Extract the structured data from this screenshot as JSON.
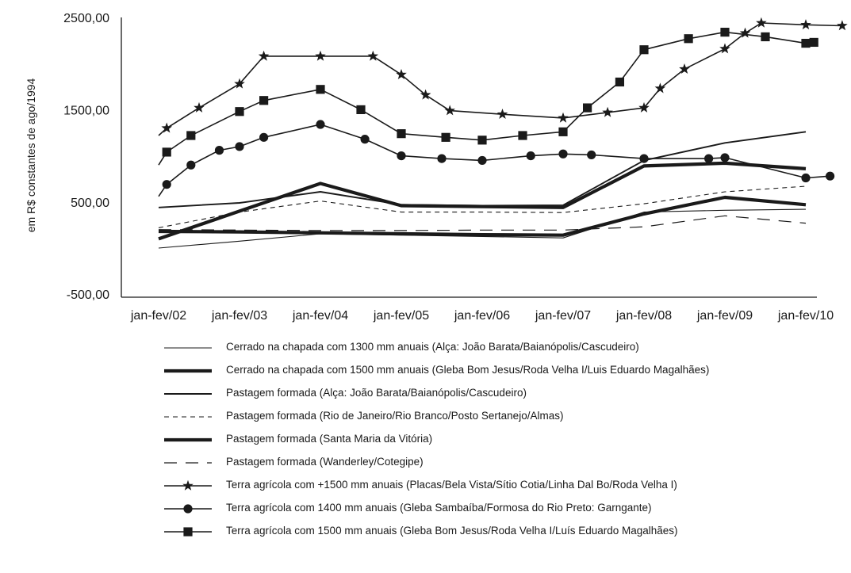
{
  "chart_data": {
    "type": "line",
    "ylabel": "em R$ constantes de ago/1994",
    "ylim": [
      -500,
      2500
    ],
    "yticks": [
      "2500,00",
      "1500,00",
      "500,00",
      "-500,00"
    ],
    "ytick_values": [
      2500,
      1500,
      500,
      -500
    ],
    "grid": false,
    "legend_placement": "bottom",
    "xtick_labels": [
      "jan-fev/02",
      "jan-fev/03",
      "jan-fev/04",
      "jan-fev/05",
      "jan-fev/06",
      "jan-fev/07",
      "jan-fev/08",
      "jan-fev/09",
      "jan-fev/10"
    ],
    "series": [
      {
        "name": "Cerrado na chapada com 1300 mm anuais (Alça: João Barata/Baianópolis/Cascudeiro)",
        "style": "thin",
        "points": [
          [
            0,
            0
          ],
          [
            1,
            75
          ],
          [
            2,
            155
          ],
          [
            3,
            140
          ],
          [
            4,
            125
          ],
          [
            5,
            110
          ],
          [
            6,
            390
          ],
          [
            7,
            410
          ],
          [
            8,
            420
          ]
        ]
      },
      {
        "name": "Cerrado na chapada com 1500 mm anuais (Gleba Bom Jesus/Roda Velha I/Luis Eduardo Magalhães)",
        "style": "thick",
        "points": [
          [
            0,
            100
          ],
          [
            1,
            400
          ],
          [
            2,
            700
          ],
          [
            3,
            460
          ],
          [
            4,
            450
          ],
          [
            5,
            440
          ],
          [
            6,
            890
          ],
          [
            7,
            920
          ],
          [
            8,
            860
          ]
        ]
      },
      {
        "name": "Pastagem formada (Alça: João Barata/Baianópolis/Cascudeiro)",
        "style": "medium",
        "points": [
          [
            0,
            440
          ],
          [
            1,
            490
          ],
          [
            2,
            610
          ],
          [
            3,
            470
          ],
          [
            4,
            460
          ],
          [
            5,
            465
          ],
          [
            6,
            950
          ],
          [
            7,
            1140
          ],
          [
            8,
            1260
          ]
        ]
      },
      {
        "name": "Pastagem formada (Rio de Janeiro/Rio Branco/Posto Sertanejo/Almas)",
        "style": "dashed",
        "points": [
          [
            0,
            220
          ],
          [
            1,
            390
          ],
          [
            2,
            510
          ],
          [
            3,
            390
          ],
          [
            4,
            390
          ],
          [
            5,
            385
          ],
          [
            6,
            480
          ],
          [
            7,
            610
          ],
          [
            8,
            670
          ]
        ]
      },
      {
        "name": "Pastagem formada (Santa Maria da Vitória)",
        "style": "thick",
        "points": [
          [
            0,
            180
          ],
          [
            1,
            175
          ],
          [
            2,
            165
          ],
          [
            3,
            155
          ],
          [
            4,
            145
          ],
          [
            5,
            140
          ],
          [
            6,
            370
          ],
          [
            7,
            550
          ],
          [
            8,
            470
          ]
        ]
      },
      {
        "name": "Pastagem formada (Wanderley/Cotegipe)",
        "style": "longdash",
        "points": [
          [
            0,
            200
          ],
          [
            1,
            195
          ],
          [
            2,
            190
          ],
          [
            3,
            190
          ],
          [
            4,
            195
          ],
          [
            5,
            195
          ],
          [
            6,
            230
          ],
          [
            7,
            350
          ],
          [
            8,
            270
          ]
        ]
      },
      {
        "name": "Terra agrícola com +1500 mm anuais (Placas/Bela Vista/Sítio Cotia/Linha Dal Bo/Roda Velha I)",
        "style": "star",
        "points": [
          [
            0,
            1220
          ],
          [
            0.1,
            1300
          ],
          [
            0.5,
            1520
          ],
          [
            1,
            1780
          ],
          [
            1.3,
            2080
          ],
          [
            2,
            2080
          ],
          [
            2.65,
            2080
          ],
          [
            3,
            1880
          ],
          [
            3.3,
            1660
          ],
          [
            3.6,
            1490
          ],
          [
            4.25,
            1450
          ],
          [
            5,
            1410
          ],
          [
            5.55,
            1470
          ],
          [
            6,
            1520
          ],
          [
            6.2,
            1730
          ],
          [
            6.5,
            1940
          ],
          [
            7,
            2160
          ],
          [
            7.25,
            2330
          ],
          [
            7.45,
            2440
          ],
          [
            8,
            2420
          ],
          [
            8.45,
            2410
          ]
        ]
      },
      {
        "name": "Terra agrícola com 1400 mm anuais (Gleba Sambaíba/Formosa do Rio Preto: Garngante)",
        "style": "circle",
        "points": [
          [
            0,
            560
          ],
          [
            0.1,
            690
          ],
          [
            0.4,
            900
          ],
          [
            0.75,
            1060
          ],
          [
            1,
            1100
          ],
          [
            1.3,
            1200
          ],
          [
            2,
            1340
          ],
          [
            2.55,
            1180
          ],
          [
            3,
            1000
          ],
          [
            3.5,
            970
          ],
          [
            4,
            950
          ],
          [
            4.6,
            1000
          ],
          [
            5,
            1020
          ],
          [
            5.35,
            1010
          ],
          [
            6,
            970
          ],
          [
            6.8,
            970
          ],
          [
            7,
            980
          ],
          [
            8,
            760
          ],
          [
            8.3,
            780
          ]
        ]
      },
      {
        "name": "Terra agrícola com 1500 mm anuais (Gleba Bom Jesus/Roda Velha I/Luís Eduardo Magalhães)",
        "style": "square",
        "points": [
          [
            0,
            900
          ],
          [
            0.1,
            1040
          ],
          [
            0.4,
            1220
          ],
          [
            1,
            1480
          ],
          [
            1.3,
            1600
          ],
          [
            2,
            1720
          ],
          [
            2.5,
            1500
          ],
          [
            3,
            1240
          ],
          [
            3.55,
            1200
          ],
          [
            4,
            1170
          ],
          [
            4.5,
            1220
          ],
          [
            5,
            1260
          ],
          [
            5.3,
            1520
          ],
          [
            5.7,
            1800
          ],
          [
            6,
            2150
          ],
          [
            6.55,
            2270
          ],
          [
            7,
            2340
          ],
          [
            7.5,
            2290
          ],
          [
            8,
            2220
          ],
          [
            8.1,
            2230
          ]
        ]
      }
    ]
  }
}
